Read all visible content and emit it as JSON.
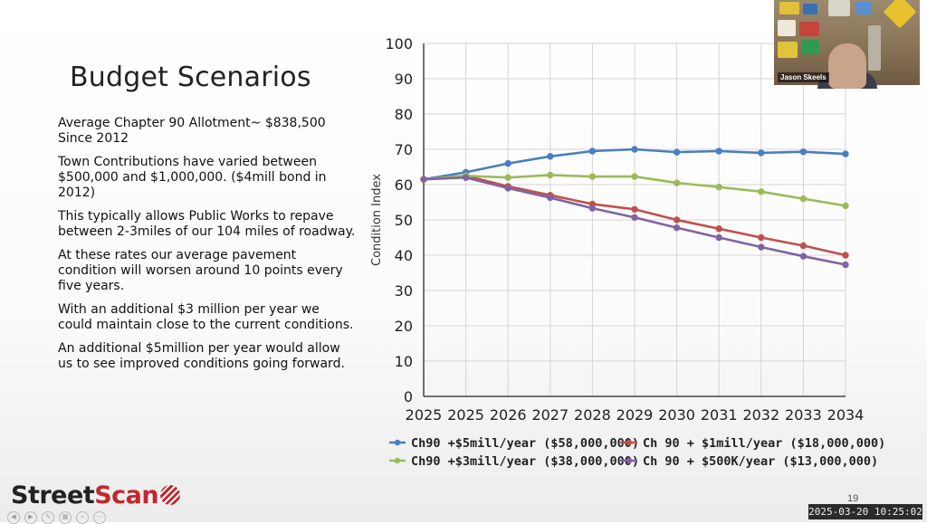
{
  "slide": {
    "title": "Budget Scenarios",
    "bullets": [
      "Average Chapter 90 Allotment~ $838,500 Since 2012",
      "Town Contributions have varied between $500,000 and $1,000,000. ($4mill bond in 2012)",
      "This typically allows Public Works to repave between 2-3miles of our 104 miles of roadway.",
      "At these rates our average pavement condition will worsen around 10 points every five years.",
      "With an additional $3 million per year we could maintain close to the current conditions.",
      "An additional $5million per year would allow us to see improved conditions going forward."
    ],
    "page_number": "19"
  },
  "logo": {
    "street": "Street",
    "scan": "Scan"
  },
  "webcam": {
    "name": "Jason Skeels"
  },
  "timestamp": "2025-03-20 10:25:02",
  "colors": {
    "blue": "#4a7ec0",
    "red": "#c0504d",
    "green": "#9bbb59",
    "purple": "#8064a2",
    "brand_red": "#c1272d"
  },
  "chart_data": {
    "type": "line",
    "x": [
      "2025",
      "2025",
      "2026",
      "2027",
      "2028",
      "2029",
      "2030",
      "2031",
      "2032",
      "2033",
      "2034"
    ],
    "ylabel": "Condition Index",
    "xlabel": "",
    "ylim": [
      0,
      100
    ],
    "yticks": [
      0,
      10,
      20,
      30,
      40,
      50,
      60,
      70,
      80,
      90,
      100
    ],
    "legend_position": "bottom",
    "grid": true,
    "series": [
      {
        "name": "Ch90 +$5mill/year ($58,000,000)",
        "color": "#4a7ec0",
        "values": [
          61.5,
          63.5,
          66,
          68,
          69.5,
          70,
          69.2,
          69.5,
          69,
          69.3,
          68.7
        ]
      },
      {
        "name": "Ch 90 + $1mill/year ($18,000,000)",
        "color": "#c0504d",
        "values": [
          61.5,
          62.5,
          59.5,
          57,
          54.5,
          53,
          50,
          47.5,
          45,
          42.7,
          40
        ]
      },
      {
        "name": "Ch90 +$3mill/year ($38,000,000)",
        "color": "#9bbb59",
        "values": [
          61.5,
          62.5,
          62,
          62.7,
          62.3,
          62.3,
          60.5,
          59.3,
          58,
          56,
          54
        ]
      },
      {
        "name": "Ch 90 + $500K/year ($13,000,000)",
        "color": "#8064a2",
        "values": [
          61.5,
          62,
          59,
          56.3,
          53.3,
          50.7,
          47.8,
          45,
          42.3,
          39.7,
          37.3
        ]
      }
    ]
  }
}
